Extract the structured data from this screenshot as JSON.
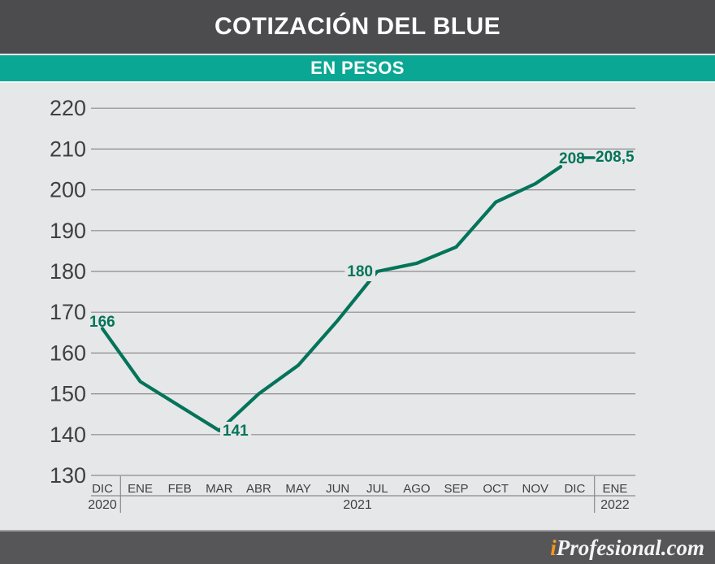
{
  "header": {
    "title": "COTIZACIÓN DEL BLUE",
    "subtitle": "EN PESOS"
  },
  "footer": {
    "brand_prefix": "i",
    "brand_rest": "Profesional.com"
  },
  "colors": {
    "header_gray": "#4c4c4e",
    "accent_teal": "#0ba795",
    "chart_bg": "#e6e7e9",
    "grid_gray": "#8b8b8e",
    "line_green": "#03745a",
    "footer_gray": "#565659",
    "brand_orange": "#f6981d"
  },
  "chart_data": {
    "type": "line",
    "title": "COTIZACIÓN DEL BLUE",
    "subtitle": "EN PESOS",
    "categories": [
      "DIC",
      "ENE",
      "FEB",
      "MAR",
      "ABR",
      "MAY",
      "JUN",
      "JUL",
      "AGO",
      "SEP",
      "OCT",
      "NOV",
      "DIC",
      "ENE"
    ],
    "year_groups": [
      {
        "label": "2020",
        "span": [
          0,
          0
        ]
      },
      {
        "label": "2021",
        "span": [
          1,
          12
        ]
      },
      {
        "label": "2022",
        "span": [
          13,
          13
        ]
      }
    ],
    "values": [
      166,
      153,
      147,
      141,
      150,
      157,
      168,
      180,
      182,
      186,
      197,
      201.5,
      208,
      208.5
    ],
    "point_labels": [
      {
        "index": 0,
        "text": "166"
      },
      {
        "index": 3,
        "text": "141"
      },
      {
        "index": 7,
        "text": "180"
      },
      {
        "index": 12,
        "text": "208"
      },
      {
        "index": 13,
        "text": "208,5"
      }
    ],
    "ylim": [
      130,
      220
    ],
    "ytick_step": 10,
    "grid": "horizontal",
    "legend": "none",
    "xlabel": "",
    "ylabel": ""
  }
}
